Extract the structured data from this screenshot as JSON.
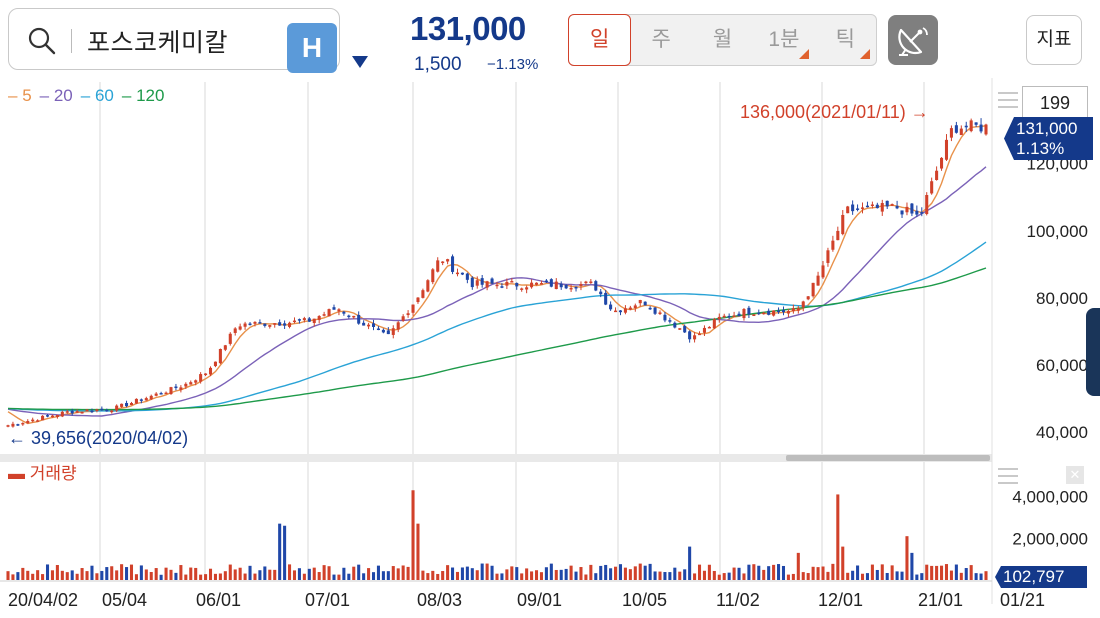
{
  "header": {
    "stock_name": "포스코케미칼",
    "h_badge": "H",
    "price": "131,000",
    "change_abs": "1,500",
    "change_pct": "−1.13%",
    "periods": [
      {
        "label": "일",
        "active": true,
        "has_submenu": false
      },
      {
        "label": "주",
        "active": false,
        "has_submenu": false
      },
      {
        "label": "월",
        "active": false,
        "has_submenu": false
      },
      {
        "label": "1분",
        "active": false,
        "has_submenu": true
      },
      {
        "label": "틱",
        "active": false,
        "has_submenu": true
      }
    ],
    "indicator_label": "지표",
    "icons": [
      "search-icon",
      "chevron-down-icon",
      "satellite-dish-icon"
    ]
  },
  "legend": [
    {
      "label": "5",
      "color": "#e8914a"
    },
    {
      "label": "20",
      "color": "#7b62b8"
    },
    {
      "label": "60",
      "color": "#2aa3d6"
    },
    {
      "label": "120",
      "color": "#1e9a4a"
    }
  ],
  "volume_legend": "거래량",
  "count_box": "199",
  "price_marker": {
    "price": "131,000",
    "pct": "1.13%"
  },
  "volume_marker": "102,797",
  "colors": {
    "up": "#d1412a",
    "down": "#1f47a8",
    "brand": "#14398a",
    "grid": "#d8d8d8"
  },
  "chart_data": {
    "type": "candlestick",
    "period": "daily",
    "price_axis": {
      "ticks": [
        "40,000",
        "60,000",
        "80,000",
        "100,000",
        "120,000"
      ],
      "values": [
        40000,
        60000,
        80000,
        100000,
        120000
      ],
      "ylim": [
        34000,
        142000
      ]
    },
    "volume_axis": {
      "ticks": [
        "4,000,000",
        "2,000,000"
      ],
      "values": [
        4000000,
        2000000
      ],
      "ylim": [
        0,
        4600000
      ]
    },
    "x_labels": [
      "20/04/02",
      "05/04",
      "06/01",
      "07/01",
      "08/03",
      "09/01",
      "10/05",
      "11/02",
      "12/01",
      "21/01",
      "01/21"
    ],
    "annotations": {
      "high": {
        "label": "136,000(2021/01/11)",
        "value": 136000,
        "arrow": "→"
      },
      "low": {
        "label": "39,656(2020/04/02)",
        "value": 39656,
        "arrow": "←"
      }
    },
    "close_anchors": [
      {
        "date": "2020/04/02",
        "close": 42000
      },
      {
        "date": "2020/04/20",
        "close": 46000
      },
      {
        "date": "2020/05/04",
        "close": 47000
      },
      {
        "date": "2020/05/25",
        "close": 54000
      },
      {
        "date": "2020/06/01",
        "close": 58000
      },
      {
        "date": "2020/06/10",
        "close": 72000
      },
      {
        "date": "2020/07/01",
        "close": 73000
      },
      {
        "date": "2020/07/10",
        "close": 77000
      },
      {
        "date": "2020/07/25",
        "close": 68000
      },
      {
        "date": "2020/08/03",
        "close": 80000
      },
      {
        "date": "2020/08/10",
        "close": 92000
      },
      {
        "date": "2020/08/20",
        "close": 84000
      },
      {
        "date": "2020/09/01",
        "close": 84000
      },
      {
        "date": "2020/09/25",
        "close": 84000
      },
      {
        "date": "2020/10/01",
        "close": 76000
      },
      {
        "date": "2020/10/10",
        "close": 79000
      },
      {
        "date": "2020/10/25",
        "close": 68000
      },
      {
        "date": "2020/11/02",
        "close": 74000
      },
      {
        "date": "2020/11/10",
        "close": 76000
      },
      {
        "date": "2020/11/25",
        "close": 76000
      },
      {
        "date": "2020/12/01",
        "close": 85000
      },
      {
        "date": "2020/12/10",
        "close": 106000
      },
      {
        "date": "2020/12/25",
        "close": 107000
      },
      {
        "date": "2021/01/01",
        "close": 104000
      },
      {
        "date": "2021/01/11",
        "close": 131000
      },
      {
        "date": "2021/01/21",
        "close": 131000
      }
    ],
    "moving_averages": [
      {
        "name": "5",
        "color": "#e8914a"
      },
      {
        "name": "20",
        "color": "#7b62b8"
      },
      {
        "name": "60",
        "color": "#2aa3d6"
      },
      {
        "name": "120",
        "color": "#1e9a4a"
      }
    ]
  }
}
